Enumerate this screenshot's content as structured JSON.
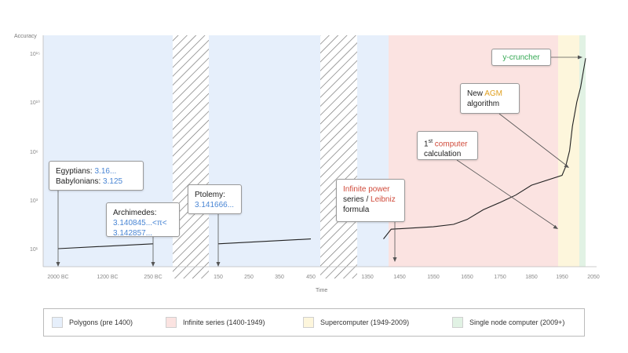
{
  "chart_data": {
    "type": "line",
    "title": "",
    "xlabel": "Time",
    "ylabel": "Accuracy",
    "x_ticks": [
      "2000 BC",
      "1200 BC",
      "250 BC",
      "150",
      "250",
      "350",
      "450",
      "1350",
      "1450",
      "1550",
      "1650",
      "1750",
      "1850",
      "1950",
      "2050"
    ],
    "y_ticks": [
      "10¹",
      "10³",
      "10⁶",
      "10¹⁰",
      "10¹⁵"
    ],
    "series": [
      {
        "x": [
          "2000 BC",
          "250 BC",
          "150",
          "450",
          "1400",
          "1424",
          "1550",
          "1610",
          "1650",
          "1699",
          "1750",
          "1800",
          "1850",
          "1950",
          "1961",
          "1974",
          "1983",
          "1997",
          "2009",
          "2025"
        ],
        "values": [
          1.0,
          1.2,
          1.2,
          1.4,
          1.4,
          1.8,
          1.9,
          2.0,
          2.2,
          2.6,
          2.9,
          3.3,
          3.9,
          4.5,
          5.0,
          6.0,
          8.0,
          10.0,
          11.5,
          14.5
        ]
      }
    ],
    "eras": [
      {
        "label": "Polygons (pre 1400)",
        "color": "#e6effb"
      },
      {
        "label": "Infinite series (1400-1949)",
        "color": "#fbe3e1"
      },
      {
        "label": "Supercomputer (1949-2009)",
        "color": "#fdf6dc"
      },
      {
        "label": "Single node computer (2009+)",
        "color": "#e1f2e4"
      }
    ],
    "grid": false,
    "legend_position": "bottom"
  },
  "annotations": {
    "egypt": {
      "line1": "Egyptians: ",
      "v1": "3.16...",
      "line2": "Babylonians: ",
      "v2": "3.125"
    },
    "archimedes": {
      "title": "Archimedes:",
      "value": "3.140845...<π< 3.142857..."
    },
    "ptolemy": {
      "title": "Ptolemy:",
      "value": "3.141666..."
    },
    "infinite": {
      "a": "Infinite power",
      "b": "series / ",
      "c": "Leibniz",
      "d": "formula"
    },
    "computer": {
      "pre": "1",
      "sup": "st",
      "red": "computer",
      "rest": "calculation"
    },
    "agm": {
      "pre": "New ",
      "accent": "AGM",
      "rest": "algorithm"
    },
    "ycruncher": {
      "label": "y-cruncher"
    }
  }
}
